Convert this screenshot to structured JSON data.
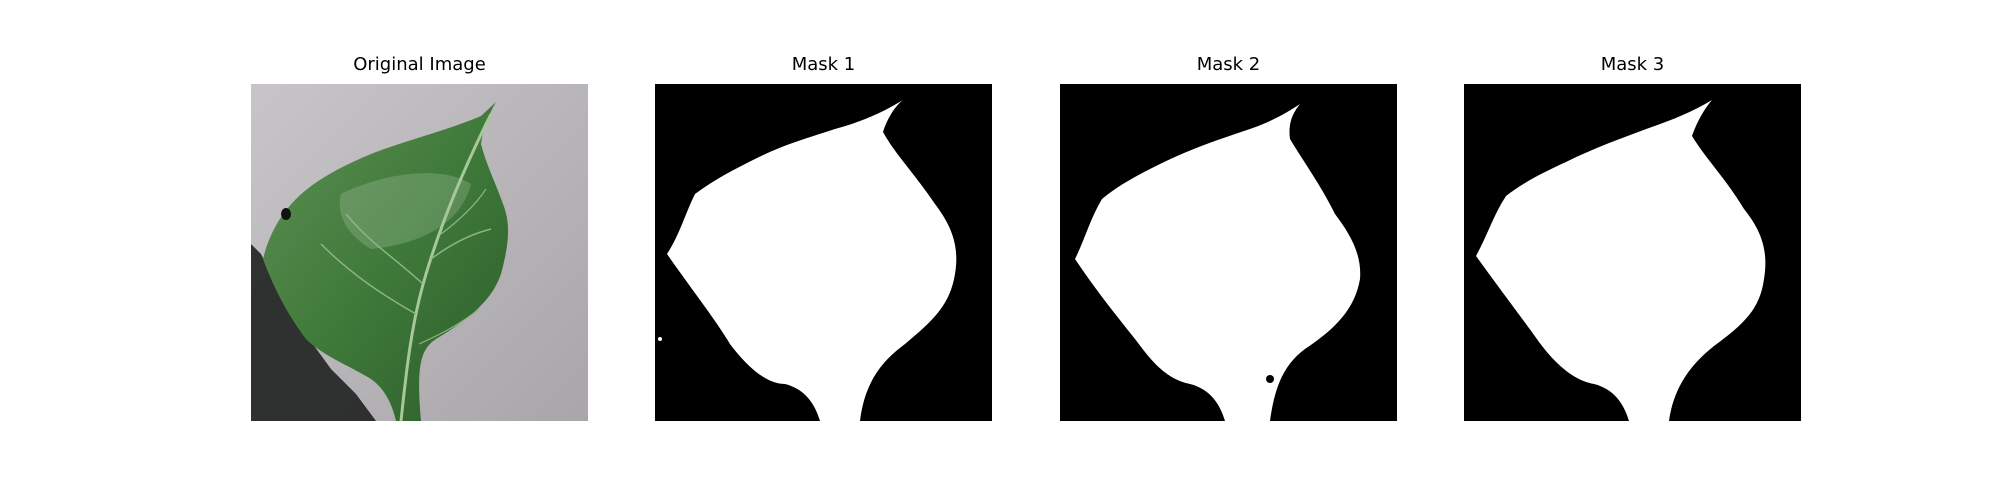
{
  "figure": {
    "panels": [
      {
        "id": "original",
        "title": "Original Image",
        "kind": "photo"
      },
      {
        "id": "mask-1",
        "title": "Mask 1",
        "kind": "mask"
      },
      {
        "id": "mask-2",
        "title": "Mask 2",
        "kind": "mask"
      },
      {
        "id": "mask-3",
        "title": "Mask 3",
        "kind": "mask"
      }
    ]
  },
  "colors": {
    "background": "#ffffff",
    "mask_background": "#000000",
    "mask_foreground": "#ffffff",
    "leaf_green": "#3f7a3a",
    "leaf_dark": "#2c5c2a",
    "surface_gray": "#b9b6ba",
    "shadow": "#1f2220"
  }
}
